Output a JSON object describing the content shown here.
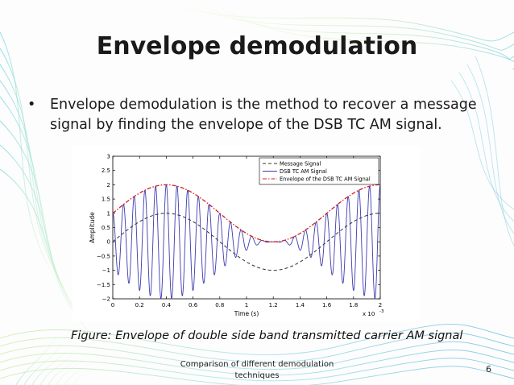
{
  "slide": {
    "title": "Envelope demodulation",
    "bullet": "Envelope demodulation is the method to recover a message signal by finding the envelope of the DSB TC AM signal.",
    "caption": "Figure: Envelope of double side band transmitted carrier AM signal",
    "footer": "Comparison of different demodulation techniques",
    "page_number": "6",
    "bullet_symbol": "•"
  },
  "colors": {
    "message": "#333333",
    "dsb": "#3b3bb0",
    "envelope": "#d42020",
    "wave_bg": "#5fc7d6"
  },
  "chart_data": {
    "type": "line",
    "title": "",
    "xlabel": "Time (s)",
    "ylabel": "Amplitude",
    "x_exponent_label": "x 10",
    "x_exponent_power": "-3",
    "xlim": [
      0,
      2
    ],
    "ylim": [
      -2,
      3
    ],
    "x_ticks": [
      0,
      0.2,
      0.4,
      0.6,
      0.8,
      1,
      1.2,
      1.4,
      1.6,
      1.8,
      2
    ],
    "x_tick_labels": [
      "0",
      "0.2",
      "0.4",
      "0.6",
      "0.8",
      "1",
      "1.2",
      "1.4",
      "1.6",
      "1.8",
      "2"
    ],
    "y_ticks": [
      -2,
      -1.5,
      -1,
      -0.5,
      0,
      0.5,
      1,
      1.5,
      2,
      2.5,
      3
    ],
    "y_tick_labels": [
      "−2",
      "−1.5",
      "−1",
      "−0.5",
      "0",
      "0.5",
      "1",
      "1.5",
      "2",
      "2.5",
      "3"
    ],
    "grid": false,
    "legend_position": "top-right",
    "message_amplitude": 1,
    "carrier_offset": 1,
    "message_period_ms": 1.6,
    "carrier_frequency_khz": 12.5,
    "series": [
      {
        "name": "Message Signal",
        "style": "dashed",
        "color": "#333333"
      },
      {
        "name": "DSB TC AM Signal",
        "style": "solid",
        "color": "#3b3bb0"
      },
      {
        "name": "Envelope of the DSB TC AM Signal",
        "style": "dash-dot",
        "color": "#d42020"
      }
    ]
  }
}
